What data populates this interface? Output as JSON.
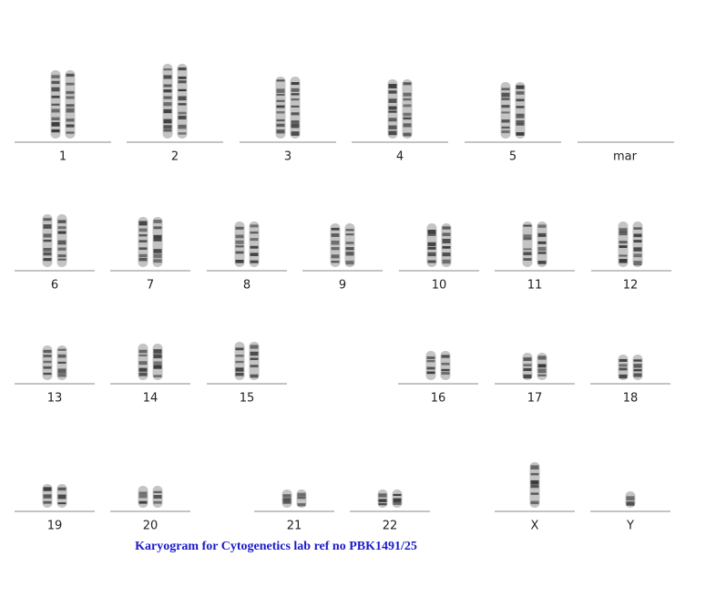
{
  "labels": [
    "1",
    "2",
    "3",
    "4",
    "5",
    "mar",
    "6",
    "7",
    "8",
    "9",
    "10",
    "11",
    "12",
    "13",
    "14",
    "15",
    "16",
    "17",
    "18",
    "19",
    "20",
    "21",
    "22",
    "X",
    "Y"
  ],
  "caption": "Karyogram for Cytogenetics lab ref no PBK1491/25"
}
